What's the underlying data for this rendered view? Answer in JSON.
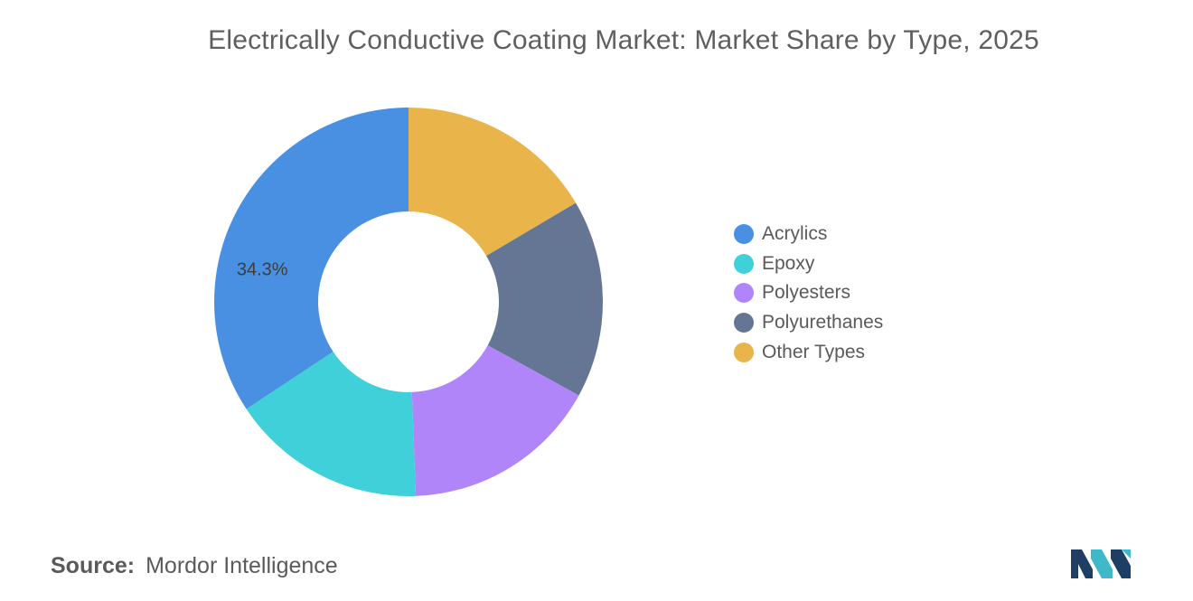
{
  "header": {
    "title": "Electrically Conductive Coating Market: Market Share by Type, 2025"
  },
  "chart_data": {
    "type": "pie",
    "style": "donut",
    "title": "Electrically Conductive Coating Market: Market Share by Type, 2025",
    "legend_position": "right",
    "data_label_shown": "34.3%",
    "slices": [
      {
        "name": "Other Types",
        "value": 16.5,
        "color": "#E9B54A"
      },
      {
        "name": "Polyurethanes",
        "value": 16.5,
        "color": "#657694"
      },
      {
        "name": "Polyesters",
        "value": 16.4,
        "color": "#B185FA"
      },
      {
        "name": "Epoxy",
        "value": 16.3,
        "color": "#40D0DA"
      },
      {
        "name": "Acrylics",
        "value": 34.3,
        "color": "#4A90E2"
      }
    ]
  },
  "legend": {
    "items": [
      {
        "label": "Acrylics",
        "color": "#4A90E2"
      },
      {
        "label": "Epoxy",
        "color": "#40D0DA"
      },
      {
        "label": "Polyesters",
        "color": "#B185FA"
      },
      {
        "label": "Polyurethanes",
        "color": "#657694"
      },
      {
        "label": "Other Types",
        "color": "#E9B54A"
      }
    ]
  },
  "footer": {
    "source_key": "Source:",
    "source_value": "Mordor Intelligence",
    "logo_icon": "mordor-intelligence-logo",
    "logo_colors": [
      "#1F3E63",
      "#3FB8C9"
    ]
  }
}
